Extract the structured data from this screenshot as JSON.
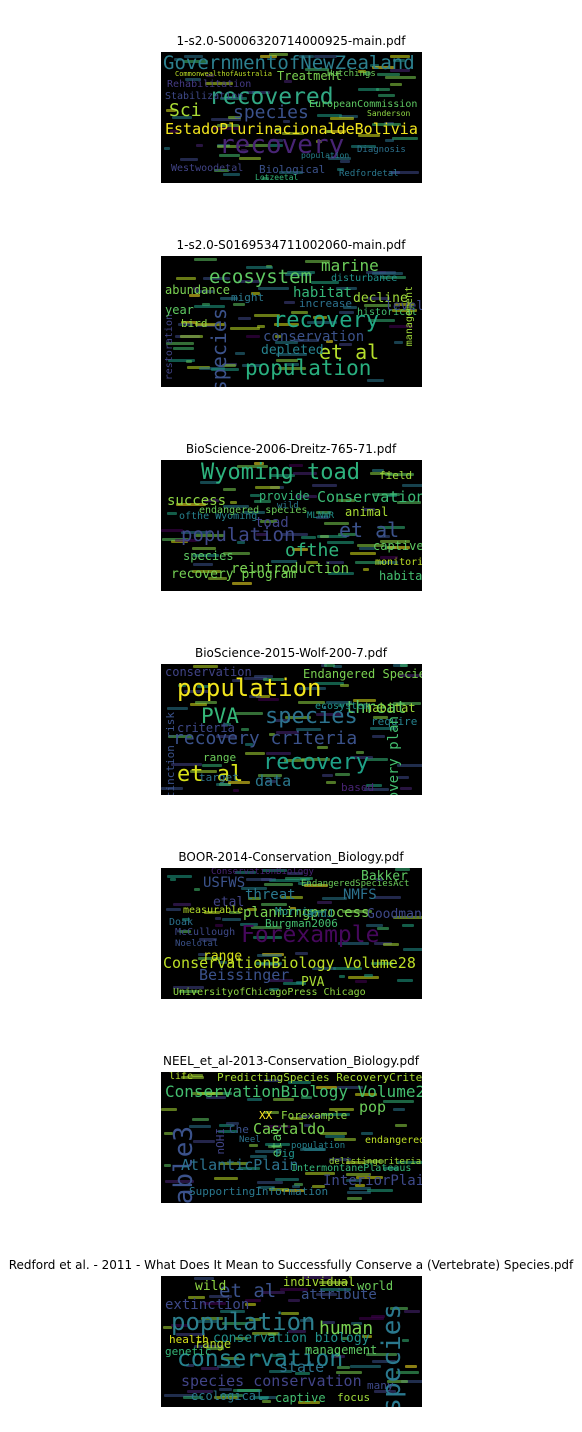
{
  "panels": [
    {
      "title": "1-s2.0-S0006320714000925-main.pdf",
      "words": [
        {
          "t": "GovernmentofNewZealand",
          "c": "#2c7f8e"
        },
        {
          "t": "recovered",
          "c": "#31a884"
        },
        {
          "t": "EstadoPlurinacionaldeBolivia",
          "c": "#f2e51d"
        },
        {
          "t": "recovery",
          "c": "#482475"
        },
        {
          "t": "species",
          "c": "#3b528b"
        },
        {
          "t": "Sci",
          "c": "#a8db34"
        },
        {
          "t": "Treatment",
          "c": "#7ad151"
        },
        {
          "t": "Stabilization",
          "c": "#3e4989"
        },
        {
          "t": "EuropeanCommission",
          "c": "#5ec962"
        },
        {
          "t": "Rehabilitation",
          "c": "#443a83"
        },
        {
          "t": "Biological",
          "c": "#3b528b"
        },
        {
          "t": "Westwoodetal",
          "c": "#414487"
        },
        {
          "t": "Redfordetal",
          "c": "#2a788e"
        },
        {
          "t": "population",
          "c": "#26828e"
        },
        {
          "t": "Diagnosis",
          "c": "#2c728e"
        },
        {
          "t": "CommonwealthofAustralia",
          "c": "#bddf26"
        },
        {
          "t": "Hutchings",
          "c": "#6ccd5a"
        },
        {
          "t": "Sanderson",
          "c": "#8fd744"
        },
        {
          "t": "Lotzeetal",
          "c": "#35b779"
        }
      ]
    },
    {
      "title": "1-s2.0-S0169534711002060-main.pdf",
      "words": [
        {
          "t": "recovery",
          "c": "#22a884"
        },
        {
          "t": "ecosystem",
          "c": "#5ec962"
        },
        {
          "t": "population",
          "c": "#29af7f"
        },
        {
          "t": "et al",
          "c": "#b5de2b"
        },
        {
          "t": "species",
          "c": "#3b528b"
        },
        {
          "t": "marine",
          "c": "#6ccd5a"
        },
        {
          "t": "abundance",
          "c": "#7ad151"
        },
        {
          "t": "disturbance",
          "c": "#21918c"
        },
        {
          "t": "decline",
          "c": "#9fda3a"
        },
        {
          "t": "habitat",
          "c": "#35b779"
        },
        {
          "t": "increase",
          "c": "#2c728e"
        },
        {
          "t": "conservation",
          "c": "#3b528b"
        },
        {
          "t": "historical",
          "c": "#44bf70"
        },
        {
          "t": "depleted",
          "c": "#26828e"
        },
        {
          "t": "restoration",
          "c": "#414487"
        },
        {
          "t": "management",
          "c": "#a0da39"
        },
        {
          "t": "level",
          "c": "#3e4989"
        },
        {
          "t": "year",
          "c": "#5ec962"
        },
        {
          "t": "bird",
          "c": "#8fd744"
        },
        {
          "t": "might",
          "c": "#2a788e"
        }
      ]
    },
    {
      "title": "BioScience-2006-Dreitz-765-71.pdf",
      "words": [
        {
          "t": "Wyoming toad",
          "c": "#2db27d"
        },
        {
          "t": "Conservation",
          "c": "#3bbb75"
        },
        {
          "t": "et al",
          "c": "#3b528b"
        },
        {
          "t": "population",
          "c": "#3e4989"
        },
        {
          "t": "ofthe",
          "c": "#2fb47c"
        },
        {
          "t": "reintroduction",
          "c": "#7ad151"
        },
        {
          "t": "recovery program",
          "c": "#75d054"
        },
        {
          "t": "success",
          "c": "#8fd744"
        },
        {
          "t": "animal",
          "c": "#a8db34"
        },
        {
          "t": "toad",
          "c": "#414487"
        },
        {
          "t": "species",
          "c": "#5ec962"
        },
        {
          "t": "provide",
          "c": "#35b779"
        },
        {
          "t": "ofthe Wyoming",
          "c": "#26828e"
        },
        {
          "t": "captive",
          "c": "#5ec962"
        },
        {
          "t": "habitat",
          "c": "#44bf70"
        },
        {
          "t": "monitoring",
          "c": "#bddf26"
        },
        {
          "t": "field",
          "c": "#9fda3a"
        },
        {
          "t": "endangered species",
          "c": "#6ccd5a"
        },
        {
          "t": "MLNWR",
          "c": "#21918c"
        },
        {
          "t": "wild",
          "c": "#2a788e"
        }
      ]
    },
    {
      "title": "BioScience-2015-Wolf-200-7.pdf",
      "words": [
        {
          "t": "population",
          "c": "#f1e51d"
        },
        {
          "t": "species",
          "c": "#2c728e"
        },
        {
          "t": "recovery",
          "c": "#1fa187"
        },
        {
          "t": "PVA",
          "c": "#35b779"
        },
        {
          "t": "recovery criteria",
          "c": "#3b528b"
        },
        {
          "t": "et al",
          "c": "#d8e219"
        },
        {
          "t": "threat",
          "c": "#5ec962"
        },
        {
          "t": "data",
          "c": "#2a788e"
        },
        {
          "t": "Endangered Species",
          "c": "#7ad151"
        },
        {
          "t": "conservation",
          "c": "#414487"
        },
        {
          "t": "habitat",
          "c": "#9fda3a"
        },
        {
          "t": "ecosystem",
          "c": "#21918c"
        },
        {
          "t": "criteria",
          "c": "#3e4989"
        },
        {
          "t": "range",
          "c": "#6ccd5a"
        },
        {
          "t": "target",
          "c": "#2c728e"
        },
        {
          "t": "require",
          "c": "#26828e"
        },
        {
          "t": "based",
          "c": "#482475"
        },
        {
          "t": "extinction risk",
          "c": "#3b528b"
        },
        {
          "t": "recovery plan",
          "c": "#44bf70"
        }
      ]
    },
    {
      "title": "BOOR-2014-Conservation_Biology.pdf",
      "words": [
        {
          "t": "Forexample",
          "c": "#46085c"
        },
        {
          "t": "ConservationBiology Volume28",
          "c": "#bddf26"
        },
        {
          "t": "planningprocess",
          "c": "#7ad151"
        },
        {
          "t": "threat",
          "c": "#2a788e"
        },
        {
          "t": "USFWS",
          "c": "#3b528b"
        },
        {
          "t": "Bakker",
          "c": "#5ec962"
        },
        {
          "t": "NMFS",
          "c": "#2c728e"
        },
        {
          "t": "Goodman",
          "c": "#3e4989"
        },
        {
          "t": "etal",
          "c": "#414487"
        },
        {
          "t": "Beissinger",
          "c": "#3b528b"
        },
        {
          "t": "range",
          "c": "#d8e219"
        },
        {
          "t": "PVA",
          "c": "#a8db34"
        },
        {
          "t": "UniversityofChicagoPress Chicago",
          "c": "#8fd744"
        },
        {
          "t": "EndangeredSpeciesAct",
          "c": "#6ccd5a"
        },
        {
          "t": "measurable",
          "c": "#b5de2b"
        },
        {
          "t": "McCullough",
          "c": "#3e4989"
        },
        {
          "t": "Doak",
          "c": "#2c728e"
        },
        {
          "t": "Burgman2006",
          "c": "#44bf70"
        },
        {
          "t": "andJ",
          "c": "#26828e"
        },
        {
          "t": "Morris",
          "c": "#21918c"
        },
        {
          "t": "ConservationBiology",
          "c": "#482475"
        },
        {
          "t": "Noelotal",
          "c": "#3b528b"
        }
      ]
    },
    {
      "title": "NEEL_et_al-2013-Conservation_Biology.pdf",
      "words": [
        {
          "t": "ConservationBiology Volume27",
          "c": "#44bf70"
        },
        {
          "t": "Table3",
          "c": "#3b528b"
        },
        {
          "t": "PredictingSpecies RecoveryCriteria",
          "c": "#a8db34"
        },
        {
          "t": "Castaldo",
          "c": "#7ad151"
        },
        {
          "t": "pop",
          "c": "#6ccd5a"
        },
        {
          "t": "Forexample",
          "c": "#8fd744"
        },
        {
          "t": "etal",
          "c": "#5ec962"
        },
        {
          "t": "Fig",
          "c": "#21918c"
        },
        {
          "t": "AtlanticPlain",
          "c": "#2c728e"
        },
        {
          "t": "InteriorPlains",
          "c": "#3e4989"
        },
        {
          "t": "delistingcriteria",
          "c": "#9fda3a"
        },
        {
          "t": "IntermontanePlateaus",
          "c": "#35b779"
        },
        {
          "t": "SupportingInformation",
          "c": "#2a788e"
        },
        {
          "t": "endangered",
          "c": "#bddf26"
        },
        {
          "t": "nOHI",
          "c": "#414487"
        },
        {
          "t": "XX",
          "c": "#fde725"
        },
        {
          "t": "Che",
          "c": "#3b528b"
        },
        {
          "t": "population",
          "c": "#26828e"
        },
        {
          "t": "life",
          "c": "#b5de2b"
        },
        {
          "t": "Neel",
          "c": "#2c728e"
        }
      ]
    },
    {
      "title": "Redford et al. - 2011 - What Does It Mean to Successfully Conserve a (Vertebrate) Species.pdf",
      "words": [
        {
          "t": "population",
          "c": "#2c7f8e"
        },
        {
          "t": "species",
          "c": "#2a788e"
        },
        {
          "t": "conservation",
          "c": "#26828e"
        },
        {
          "t": "et al",
          "c": "#3b528b"
        },
        {
          "t": "human",
          "c": "#7ad151"
        },
        {
          "t": "species conservation",
          "c": "#414487"
        },
        {
          "t": "conservation biology",
          "c": "#21918c"
        },
        {
          "t": "extinction",
          "c": "#3e4989"
        },
        {
          "t": "management",
          "c": "#5ec962"
        },
        {
          "t": "attribute",
          "c": "#3b528b"
        },
        {
          "t": "world",
          "c": "#6ccd5a"
        },
        {
          "t": "wild",
          "c": "#8fd744"
        },
        {
          "t": "range",
          "c": "#b5de2b"
        },
        {
          "t": "state",
          "c": "#2c728e"
        },
        {
          "t": "genetic",
          "c": "#35b779"
        },
        {
          "t": "individual",
          "c": "#a8db34"
        },
        {
          "t": "health",
          "c": "#d8e219"
        },
        {
          "t": "ecological",
          "c": "#2a788e"
        },
        {
          "t": "captive",
          "c": "#44bf70"
        },
        {
          "t": "focus",
          "c": "#9fda3a"
        },
        {
          "t": "many",
          "c": "#3e4989"
        }
      ]
    }
  ]
}
